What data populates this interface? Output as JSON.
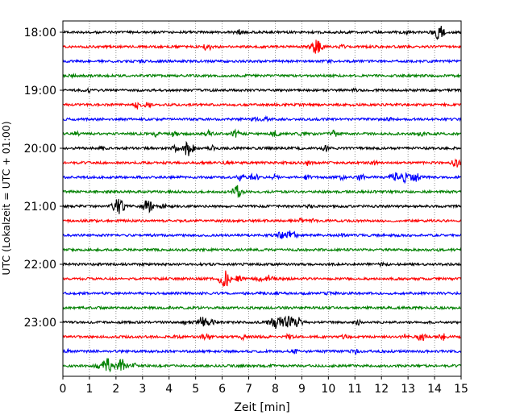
{
  "chart_data": {
    "type": "line",
    "title": "",
    "xlabel": "Zeit  [min]",
    "ylabel": "UTC (Lokalzeit = UTC + 01:00)",
    "xlim": [
      0,
      15
    ],
    "x_ticks": [
      "0",
      "1",
      "2",
      "3",
      "4",
      "5",
      "6",
      "7",
      "8",
      "9",
      "10",
      "11",
      "12",
      "13",
      "14",
      "15"
    ],
    "y_ticks": [
      "18:00",
      "19:00",
      "20:00",
      "21:00",
      "22:00",
      "23:00"
    ],
    "grid": "vertical dotted",
    "line_colors": [
      "#000000",
      "#ff0000",
      "#0000ff",
      "#008000"
    ],
    "series": [
      {
        "start": "18:00",
        "events": [
          [
            6.6,
            0.35
          ],
          [
            13.0,
            0.2
          ],
          [
            14.15,
            1.0
          ]
        ]
      },
      {
        "start": "18:15",
        "events": [
          [
            5.45,
            0.5
          ],
          [
            9.55,
            0.9
          ],
          [
            10.5,
            0.2
          ]
        ]
      },
      {
        "start": "18:30",
        "events": [
          [
            3.0,
            0.15
          ],
          [
            10.0,
            0.15
          ]
        ]
      },
      {
        "start": "18:45",
        "events": [
          [
            0.3,
            0.1
          ],
          [
            14.9,
            0.15
          ]
        ]
      },
      {
        "start": "19:00",
        "events": [
          [
            1.0,
            0.15
          ],
          [
            11.0,
            0.15
          ]
        ]
      },
      {
        "start": "19:15",
        "events": [
          [
            2.8,
            0.5
          ],
          [
            3.2,
            0.3
          ]
        ]
      },
      {
        "start": "19:30",
        "events": [
          [
            7.2,
            0.3
          ],
          [
            7.6,
            0.25
          ],
          [
            12.3,
            0.15
          ]
        ]
      },
      {
        "start": "19:45",
        "events": [
          [
            0.5,
            0.25
          ],
          [
            3.5,
            0.3
          ],
          [
            4.2,
            0.4
          ],
          [
            5.5,
            0.35
          ],
          [
            6.5,
            0.5
          ],
          [
            8.0,
            0.35
          ],
          [
            9.0,
            0.3
          ],
          [
            10.2,
            0.4
          ],
          [
            13.5,
            0.2
          ]
        ]
      },
      {
        "start": "20:00",
        "events": [
          [
            1.5,
            0.2
          ],
          [
            4.2,
            0.4
          ],
          [
            4.7,
            1.0
          ],
          [
            5.6,
            0.3
          ],
          [
            9.9,
            0.35
          ]
        ]
      },
      {
        "start": "20:15",
        "events": [
          [
            6.2,
            0.2
          ],
          [
            9.25,
            0.3
          ],
          [
            11.7,
            0.25
          ],
          [
            14.8,
            0.55
          ]
        ]
      },
      {
        "start": "20:30",
        "events": [
          [
            6.7,
            0.45
          ],
          [
            7.2,
            0.5
          ],
          [
            8.0,
            0.35
          ],
          [
            9.2,
            0.25
          ],
          [
            10.5,
            0.25
          ],
          [
            11.2,
            0.45
          ],
          [
            12.5,
            0.6
          ],
          [
            12.9,
            0.8
          ],
          [
            13.3,
            0.55
          ]
        ]
      },
      {
        "start": "20:45",
        "events": [
          [
            6.55,
            0.8
          ]
        ]
      },
      {
        "start": "21:00",
        "events": [
          [
            2.1,
            1.0
          ],
          [
            3.2,
            0.85
          ],
          [
            3.8,
            0.2
          ],
          [
            9.3,
            0.15
          ]
        ]
      },
      {
        "start": "21:15",
        "events": [
          [
            9.0,
            0.3
          ],
          [
            9.45,
            0.15
          ]
        ]
      },
      {
        "start": "21:30",
        "events": [
          [
            8.2,
            0.4
          ],
          [
            8.6,
            0.7
          ],
          [
            10.5,
            0.15
          ]
        ]
      },
      {
        "start": "21:45",
        "events": [
          [
            14.2,
            0.1
          ]
        ]
      },
      {
        "start": "22:00",
        "events": [
          [
            3.0,
            0.1
          ],
          [
            12.0,
            0.1
          ]
        ]
      },
      {
        "start": "22:15",
        "events": [
          [
            6.1,
            1.0
          ],
          [
            6.6,
            0.4
          ],
          [
            7.4,
            0.3
          ],
          [
            7.8,
            0.45
          ]
        ]
      },
      {
        "start": "22:30",
        "events": [
          [
            10.0,
            0.1
          ]
        ]
      },
      {
        "start": "22:45",
        "events": [
          [
            4.0,
            0.1
          ]
        ]
      },
      {
        "start": "23:00",
        "events": [
          [
            4.7,
            0.35
          ],
          [
            5.25,
            0.7
          ],
          [
            5.6,
            0.4
          ],
          [
            7.8,
            0.3
          ],
          [
            8.1,
            0.9
          ],
          [
            8.5,
            0.8
          ],
          [
            8.9,
            0.7
          ],
          [
            11.1,
            0.3
          ]
        ]
      },
      {
        "start": "23:15",
        "events": [
          [
            4.3,
            0.25
          ],
          [
            5.4,
            0.55
          ],
          [
            6.8,
            0.25
          ],
          [
            8.5,
            0.3
          ],
          [
            10.6,
            0.25
          ],
          [
            12.9,
            0.3
          ],
          [
            13.5,
            0.55
          ],
          [
            14.3,
            0.45
          ]
        ]
      },
      {
        "start": "23:30",
        "events": [
          [
            0.2,
            0.2
          ],
          [
            8.7,
            0.3
          ],
          [
            11.0,
            0.3
          ]
        ]
      },
      {
        "start": "23:45",
        "events": [
          [
            1.3,
            0.3
          ],
          [
            1.65,
            1.0
          ],
          [
            2.2,
            0.9
          ],
          [
            2.7,
            0.25
          ]
        ]
      }
    ]
  }
}
